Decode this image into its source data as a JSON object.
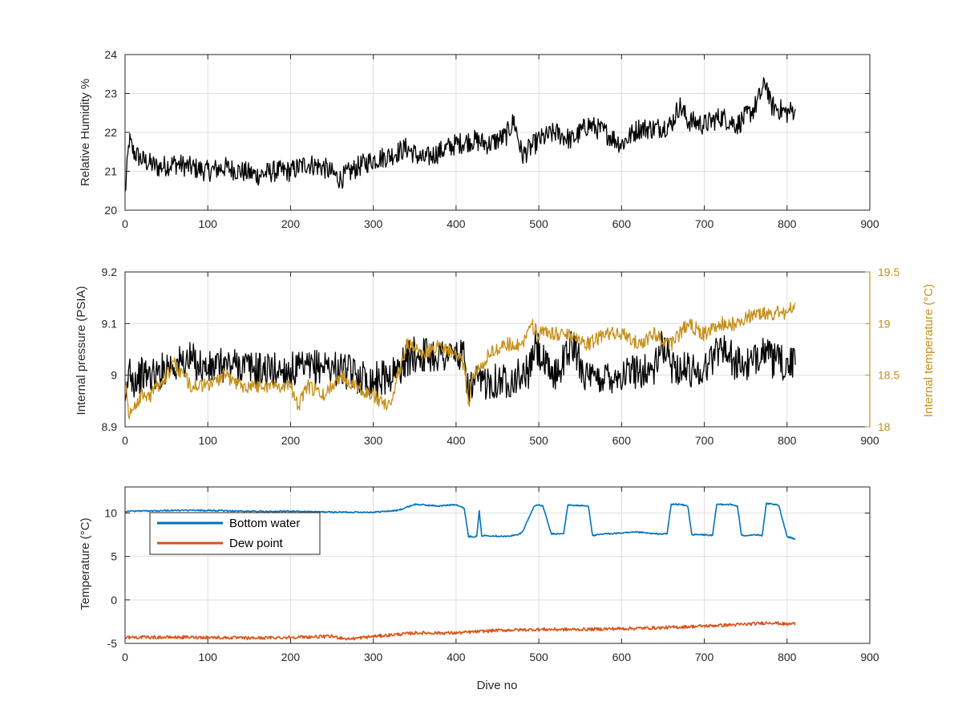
{
  "chart_data": [
    {
      "type": "line",
      "xlim": [
        0,
        900
      ],
      "xticks": [
        0,
        100,
        200,
        300,
        400,
        500,
        600,
        700,
        800,
        900
      ],
      "ylim": [
        20,
        24
      ],
      "yticks": [
        20,
        21,
        22,
        23,
        24
      ],
      "xlabel": "",
      "ylabel": "Relative Humidity %",
      "grid": true,
      "series": [
        {
          "color": "#000000",
          "x": [
            0,
            5,
            10,
            20,
            40,
            60,
            80,
            100,
            120,
            140,
            160,
            180,
            200,
            220,
            240,
            260,
            280,
            300,
            320,
            340,
            360,
            380,
            400,
            420,
            440,
            460,
            470,
            480,
            500,
            520,
            540,
            560,
            580,
            600,
            620,
            640,
            660,
            670,
            680,
            700,
            720,
            740,
            760,
            775,
            780,
            800,
            810
          ],
          "y": [
            20.4,
            21.8,
            21.5,
            21.3,
            21.1,
            21.2,
            21.1,
            21.0,
            21.1,
            21.0,
            20.9,
            21.0,
            21.0,
            21.2,
            21.1,
            20.8,
            21.1,
            21.3,
            21.4,
            21.6,
            21.3,
            21.5,
            21.7,
            21.8,
            21.7,
            21.9,
            22.3,
            21.4,
            21.8,
            22.0,
            21.8,
            22.2,
            22.0,
            21.7,
            22.1,
            22.1,
            22.2,
            22.7,
            22.3,
            22.2,
            22.4,
            22.2,
            22.6,
            23.3,
            22.7,
            22.5,
            22.6
          ]
        }
      ]
    },
    {
      "type": "line",
      "xlim": [
        0,
        900
      ],
      "xticks": [
        0,
        100,
        200,
        300,
        400,
        500,
        600,
        700,
        800,
        900
      ],
      "ylim": [
        8.9,
        9.2
      ],
      "yticks": [
        8.9,
        9,
        9.1,
        9.2
      ],
      "ylim_right": [
        18,
        19.5
      ],
      "yticks_right": [
        18,
        18.5,
        19,
        19.5
      ],
      "xlabel": "",
      "ylabel": "Internal pressure (PSIA)",
      "ylabel_right": "Internal temperature (°C)",
      "grid": true,
      "series": [
        {
          "color": "#000000",
          "axis": "left",
          "x": [
            0,
            5,
            10,
            20,
            40,
            50,
            60,
            80,
            100,
            120,
            140,
            160,
            180,
            200,
            220,
            240,
            260,
            280,
            300,
            320,
            330,
            340,
            350,
            360,
            380,
            400,
            410,
            415,
            420,
            440,
            460,
            480,
            490,
            495,
            510,
            520,
            540,
            560,
            570,
            580,
            600,
            620,
            640,
            650,
            660,
            680,
            700,
            720,
            740,
            760,
            770,
            780,
            800,
            810
          ],
          "y": [
            8.92,
            9.02,
            8.99,
            9.0,
            9.0,
            9.02,
            9.02,
            9.03,
            9.01,
            9.02,
            9.02,
            9.01,
            9.01,
            9.01,
            9.01,
            9.02,
            9.01,
            9.0,
            8.99,
            9.0,
            9.01,
            9.03,
            9.04,
            9.04,
            9.04,
            9.04,
            9.03,
            8.97,
            8.98,
            8.99,
            8.99,
            9.0,
            9.01,
            9.06,
            9.01,
            9.0,
            9.06,
            8.99,
            8.99,
            9.0,
            9.0,
            9.01,
            9.01,
            9.06,
            9.02,
            9.01,
            9.01,
            9.06,
            9.02,
            9.02,
            9.06,
            9.03,
            9.02,
            9.02
          ]
        },
        {
          "color": "#c5901a",
          "axis": "right",
          "x": [
            0,
            5,
            10,
            20,
            30,
            40,
            50,
            60,
            80,
            100,
            120,
            140,
            160,
            180,
            200,
            210,
            220,
            240,
            260,
            280,
            300,
            320,
            330,
            340,
            360,
            380,
            400,
            410,
            415,
            420,
            430,
            440,
            460,
            480,
            490,
            500,
            520,
            540,
            560,
            580,
            600,
            620,
            640,
            660,
            680,
            700,
            720,
            740,
            760,
            780,
            800,
            810
          ],
          "y": [
            18.5,
            18.1,
            18.2,
            18.3,
            18.3,
            18.4,
            18.5,
            18.6,
            18.4,
            18.4,
            18.5,
            18.4,
            18.4,
            18.4,
            18.4,
            18.2,
            18.4,
            18.3,
            18.5,
            18.4,
            18.3,
            18.2,
            18.5,
            18.8,
            18.7,
            18.8,
            18.7,
            18.6,
            18.2,
            18.5,
            18.6,
            18.7,
            18.8,
            18.8,
            19.0,
            18.9,
            18.9,
            18.9,
            18.8,
            18.9,
            18.9,
            18.8,
            18.9,
            18.8,
            19.0,
            18.9,
            19.0,
            19.0,
            19.1,
            19.1,
            19.1,
            19.2
          ]
        }
      ]
    },
    {
      "type": "line",
      "xlim": [
        0,
        900
      ],
      "xticks": [
        0,
        100,
        200,
        300,
        400,
        500,
        600,
        700,
        800,
        900
      ],
      "ylim": [
        -5,
        13
      ],
      "yticks": [
        -5,
        0,
        5,
        10
      ],
      "xlabel": "Dive no",
      "ylabel": "Temperature (°C)",
      "grid": true,
      "legend": "top-left",
      "series": [
        {
          "name": "Bottom water",
          "color": "#0072bd",
          "x": [
            0,
            50,
            100,
            150,
            200,
            250,
            300,
            330,
            350,
            380,
            400,
            410,
            415,
            425,
            428,
            431,
            440,
            460,
            475,
            480,
            495,
            500,
            505,
            515,
            530,
            535,
            540,
            560,
            565,
            580,
            600,
            620,
            640,
            655,
            660,
            670,
            680,
            685,
            700,
            710,
            715,
            730,
            740,
            745,
            760,
            770,
            775,
            790,
            800,
            810
          ],
          "y": [
            10.2,
            10.3,
            10.3,
            10.2,
            10.2,
            10.1,
            10.1,
            10.3,
            11.0,
            10.8,
            11.0,
            10.5,
            7.3,
            7.3,
            10.2,
            7.4,
            7.4,
            7.3,
            7.5,
            7.8,
            10.9,
            10.9,
            10.8,
            7.6,
            7.6,
            10.9,
            10.9,
            10.8,
            7.4,
            7.6,
            7.7,
            7.8,
            7.6,
            7.6,
            11.0,
            11.0,
            10.8,
            7.5,
            7.5,
            7.4,
            11.0,
            11.0,
            10.8,
            7.4,
            7.5,
            7.4,
            11.1,
            10.9,
            7.3,
            7.0
          ]
        },
        {
          "name": "Dew point",
          "color": "#d95319",
          "x": [
            0,
            50,
            100,
            150,
            200,
            250,
            270,
            300,
            350,
            400,
            450,
            500,
            550,
            600,
            650,
            700,
            750,
            780,
            800,
            810
          ],
          "y": [
            -4.3,
            -4.3,
            -4.3,
            -4.4,
            -4.3,
            -4.2,
            -4.5,
            -4.2,
            -3.8,
            -3.8,
            -3.5,
            -3.4,
            -3.4,
            -3.3,
            -3.2,
            -3.0,
            -2.8,
            -2.6,
            -2.8,
            -2.7
          ]
        }
      ]
    }
  ]
}
